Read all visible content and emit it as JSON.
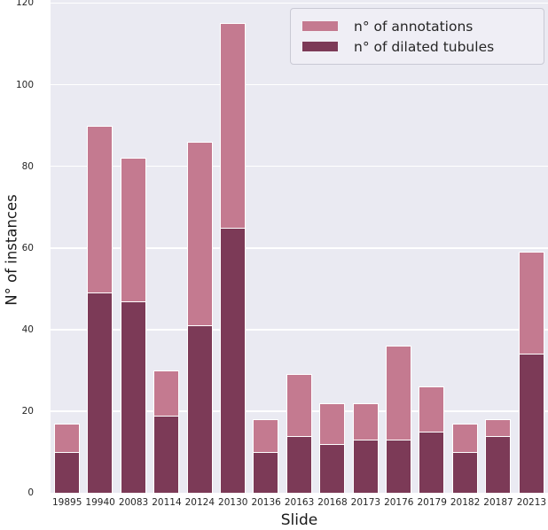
{
  "chart_data": {
    "type": "bar",
    "overlay_note": "both series drawn from zero on shared axis; dark series overlays pink series",
    "title": "",
    "xlabel": "Slide",
    "ylabel": "N° of instances",
    "categories": [
      "19895",
      "19940",
      "20083",
      "20114",
      "20124",
      "20130",
      "20136",
      "20163",
      "20168",
      "20173",
      "20176",
      "20179",
      "20182",
      "20187",
      "20213"
    ],
    "series": [
      {
        "name": "n° of annotations",
        "color": "#c47a90",
        "values": [
          17,
          90,
          82,
          30,
          86,
          115,
          18,
          29,
          22,
          22,
          36,
          26,
          17,
          18,
          59
        ]
      },
      {
        "name": "n° of dilated tubules",
        "color": "#7c3a57",
        "values": [
          10,
          49,
          47,
          19,
          41,
          65,
          10,
          14,
          12,
          13,
          13,
          15,
          10,
          14,
          34
        ]
      }
    ],
    "ylim": [
      0,
      120.75
    ],
    "yticks": [
      0,
      20,
      40,
      60,
      80,
      100,
      120
    ],
    "grid": "horizontal-white-on-lavender",
    "legend_position": "upper-right",
    "style": {
      "plot_bg": "#eaeaf2",
      "grid_color": "#ffffff",
      "bar_edge_color": "#ffffff",
      "text_color": "#262626"
    }
  }
}
